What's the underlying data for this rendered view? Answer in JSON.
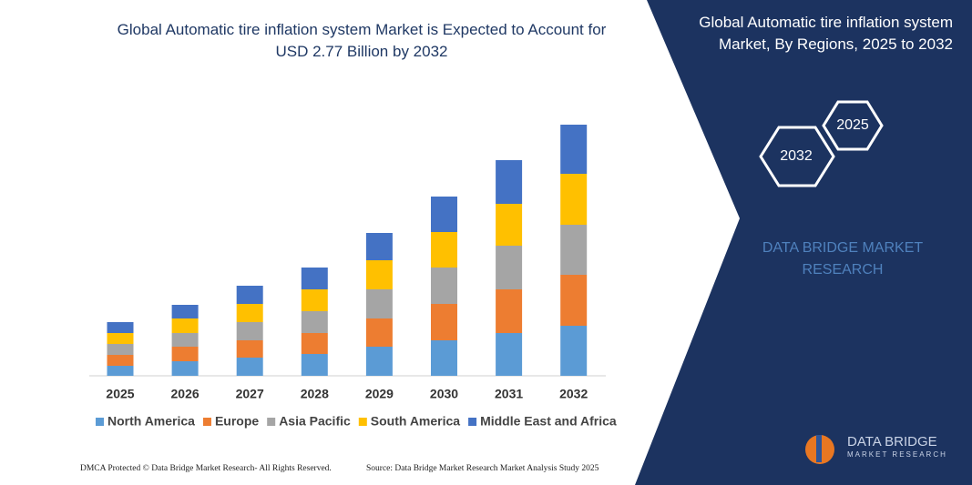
{
  "chart_data": {
    "type": "stacked-bar",
    "title": "Global Automatic tire inflation system Market is Expected to Account for USD 2.77 Billion by 2032",
    "categories": [
      "2025",
      "2026",
      "2027",
      "2028",
      "2029",
      "2030",
      "2031",
      "2032"
    ],
    "series": [
      {
        "name": "North America",
        "color": "#5b9bd5",
        "values": [
          11,
          16,
          20,
          24,
          32,
          39,
          47,
          55
        ]
      },
      {
        "name": "Europe",
        "color": "#ed7d31",
        "values": [
          12,
          16,
          19,
          23,
          31,
          40,
          48,
          56
        ]
      },
      {
        "name": "Asia Pacific",
        "color": "#a5a5a5",
        "values": [
          12,
          15,
          20,
          24,
          32,
          40,
          48,
          55
        ]
      },
      {
        "name": "South America",
        "color": "#ffc000",
        "values": [
          12,
          16,
          20,
          24,
          32,
          39,
          46,
          56
        ]
      },
      {
        "name": "Middle East and Africa",
        "color": "#4472c4",
        "values": [
          12,
          15,
          20,
          24,
          30,
          39,
          48,
          54
        ]
      }
    ]
  },
  "panel": {
    "title": "Global Automatic tire inflation system Market, By Regions, 2025 to 2032",
    "hex_left": "2032",
    "hex_right": "2025",
    "brand": "DATA BRIDGE MARKET RESEARCH"
  },
  "logo": {
    "name": "DATA BRIDGE",
    "tagline": "MARKET RESEARCH"
  },
  "footer": {
    "left": "DMCA Protected © Data Bridge Market Research- All Rights Reserved.",
    "right": "Source: Data Bridge Market Research Market Analysis Study 2025"
  }
}
